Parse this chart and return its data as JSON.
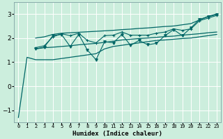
{
  "title": "",
  "xlabel": "Humidex (Indice chaleur)",
  "ylabel": "",
  "bg_color": "#cceedd",
  "line_color": "#006666",
  "xlim": [
    -0.5,
    23.5
  ],
  "ylim": [
    -1.5,
    3.5
  ],
  "yticks": [
    -1,
    0,
    1,
    2,
    3
  ],
  "xtick_labels": [
    "0",
    "1",
    "2",
    "3",
    "4",
    "5",
    "6",
    "7",
    "8",
    "9",
    "10",
    "11",
    "12",
    "13",
    "14",
    "15",
    "16",
    "17",
    "18",
    "19",
    "20",
    "21",
    "22",
    "23"
  ],
  "series": {
    "line_base": {
      "x": [
        0,
        1,
        2,
        3,
        4,
        5,
        6,
        7,
        8,
        9,
        10,
        11,
        12,
        13,
        14,
        15,
        16,
        17,
        18,
        19,
        20,
        21,
        22,
        23
      ],
      "y": [
        -1.3,
        1.2,
        1.1,
        1.1,
        1.1,
        1.15,
        1.2,
        1.25,
        1.3,
        1.35,
        1.55,
        1.65,
        1.7,
        1.75,
        1.8,
        1.85,
        1.9,
        1.92,
        1.95,
        1.98,
        2.0,
        2.05,
        2.1,
        2.15
      ],
      "marker": null
    },
    "line_lower": {
      "x": [
        2,
        3,
        4,
        5,
        6,
        7,
        8,
        9,
        10,
        11,
        12,
        13,
        14,
        15,
        16,
        17,
        18,
        19,
        20,
        21,
        22,
        23
      ],
      "y": [
        1.55,
        1.6,
        1.62,
        1.65,
        1.68,
        1.72,
        1.75,
        1.78,
        1.82,
        1.87,
        1.92,
        1.95,
        1.98,
        2.0,
        2.03,
        2.06,
        2.08,
        2.12,
        2.15,
        2.18,
        2.22,
        2.25
      ],
      "marker": null
    },
    "line_upper": {
      "x": [
        2,
        3,
        4,
        5,
        6,
        7,
        8,
        9,
        10,
        11,
        12,
        13,
        14,
        15,
        16,
        17,
        18,
        19,
        20,
        21,
        22,
        23
      ],
      "y": [
        2.0,
        2.05,
        2.15,
        2.2,
        2.22,
        2.24,
        2.26,
        2.28,
        2.3,
        2.32,
        2.35,
        2.37,
        2.4,
        2.42,
        2.45,
        2.48,
        2.5,
        2.55,
        2.6,
        2.75,
        2.9,
        3.0
      ],
      "marker": null
    },
    "line_v": {
      "x": [
        2,
        3,
        4,
        5,
        6,
        7,
        8,
        9,
        10,
        11,
        12,
        13,
        14,
        15,
        16,
        17,
        18,
        19,
        20,
        21,
        22,
        23
      ],
      "y": [
        1.55,
        1.62,
        2.1,
        2.15,
        1.65,
        2.15,
        1.5,
        1.1,
        1.85,
        1.8,
        2.15,
        1.7,
        1.9,
        1.72,
        1.78,
        2.1,
        2.35,
        2.1,
        2.42,
        2.78,
        2.88,
        2.98
      ],
      "marker": "v"
    },
    "line_plus": {
      "x": [
        2,
        3,
        4,
        5,
        6,
        7,
        8,
        9,
        10,
        11,
        12,
        13,
        14,
        15,
        16,
        17,
        18,
        19,
        20,
        21,
        22,
        23
      ],
      "y": [
        1.6,
        1.68,
        2.05,
        2.18,
        2.1,
        2.2,
        1.9,
        1.8,
        2.1,
        2.12,
        2.25,
        2.12,
        2.12,
        2.12,
        2.2,
        2.25,
        2.38,
        2.32,
        2.38,
        2.72,
        2.83,
        2.94
      ],
      "marker": "+"
    }
  }
}
